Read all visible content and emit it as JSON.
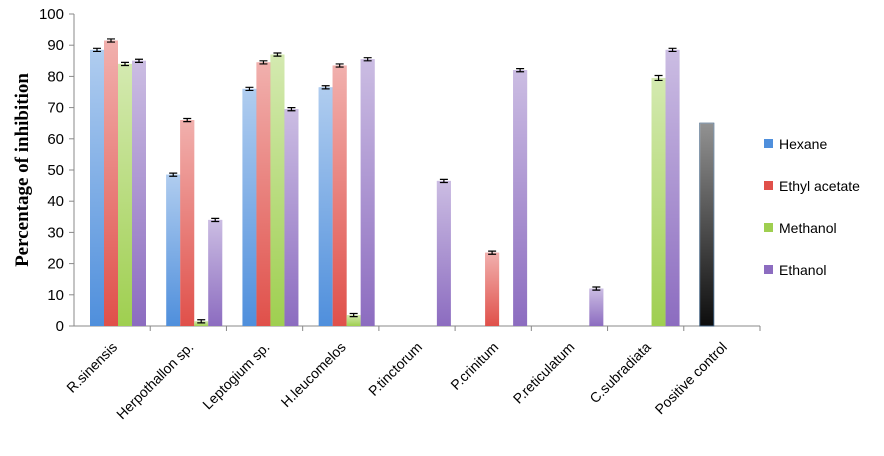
{
  "chart_data": {
    "type": "bar",
    "y_label": "Percentage of inhibition",
    "categories": [
      "R.sinensis",
      "Herpothallon sp.",
      "Leptogium sp.",
      "H.leucomelos",
      "P.tinctorum",
      "P.crinitum",
      "P.reticulatum",
      "C.subradiata",
      "Positive control"
    ],
    "series": [
      {
        "name": "Hexane",
        "color": "#4f8fdc",
        "values": [
          88.5,
          48.5,
          76,
          76.5,
          null,
          null,
          null,
          null,
          65
        ],
        "errors": [
          0.5,
          0.5,
          0.5,
          0.5,
          null,
          null,
          null,
          null,
          null
        ],
        "colors": [
          "#4f8fdc",
          "#4f8fdc",
          "#4f8fdc",
          "#4f8fdc",
          "#4f8fdc",
          "#4f8fdc",
          "#4f8fdc",
          "#4f8fdc",
          "#0d0d0d"
        ]
      },
      {
        "name": "Ethyl acetate",
        "color": "#e0504a",
        "values": [
          91.5,
          66,
          84.5,
          83.5,
          null,
          23.5,
          null,
          null,
          null
        ],
        "errors": [
          0.5,
          0.5,
          0.5,
          0.5,
          null,
          0.5,
          null,
          null,
          null
        ]
      },
      {
        "name": "Methanol",
        "color": "#9fcf50",
        "values": [
          84,
          1.5,
          87,
          3.5,
          null,
          null,
          null,
          79.5,
          null
        ],
        "errors": [
          0.5,
          0.5,
          0.5,
          0.5,
          null,
          null,
          null,
          0.8,
          null
        ]
      },
      {
        "name": "Ethanol",
        "color": "#8c6cc0",
        "values": [
          85,
          34,
          69.5,
          85.5,
          46.5,
          82,
          12,
          88.5,
          null
        ],
        "errors": [
          0.5,
          0.5,
          0.5,
          0.5,
          0.5,
          0.5,
          0.5,
          0.5,
          null
        ]
      }
    ],
    "ylim": [
      0,
      100
    ],
    "yticks": [
      0,
      10,
      20,
      30,
      40,
      50,
      60,
      70,
      80,
      90,
      100
    ],
    "grid": false,
    "legend": "right"
  }
}
